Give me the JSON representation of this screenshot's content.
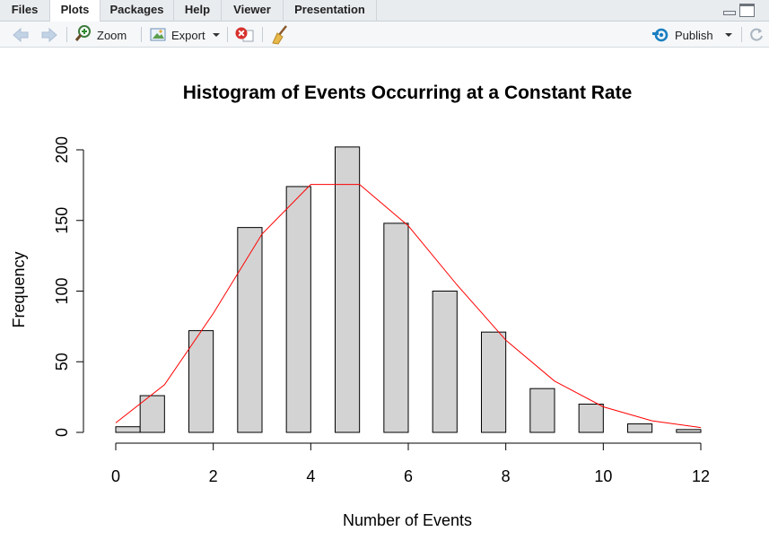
{
  "tabs": [
    {
      "label": "Files",
      "active": false
    },
    {
      "label": "Plots",
      "active": true
    },
    {
      "label": "Packages",
      "active": false
    },
    {
      "label": "Help",
      "active": false
    },
    {
      "label": "Viewer",
      "active": false
    },
    {
      "label": "Presentation",
      "active": false
    }
  ],
  "toolbar": {
    "back_icon": "arrow-left-icon",
    "forward_icon": "arrow-right-icon",
    "zoom_label": "Zoom",
    "export_label": "Export",
    "remove_icon": "remove-plot-icon",
    "clear_icon": "broom-icon",
    "publish_label": "Publish",
    "refresh_icon": "refresh-icon"
  },
  "colors": {
    "bar_fill": "#d3d3d3",
    "bar_stroke": "#000000",
    "curve": "#ff0000",
    "publish_accent": "#1a7fc1"
  },
  "chart_data": {
    "type": "bar",
    "title": "Histogram of Events Occurring at a Constant Rate",
    "xlabel": "Number of Events",
    "ylabel": "Frequency",
    "xlim": [
      0,
      12
    ],
    "ylim": [
      0,
      200
    ],
    "x_ticks": [
      "0",
      "2",
      "4",
      "6",
      "8",
      "10",
      "12"
    ],
    "y_ticks": [
      "0",
      "50",
      "100",
      "150",
      "200"
    ],
    "grid": false,
    "bar_width": 0.5,
    "bars": [
      {
        "x": 0.25,
        "value": 4
      },
      {
        "x": 0.75,
        "value": 26
      },
      {
        "x": 1.75,
        "value": 72
      },
      {
        "x": 2.75,
        "value": 145
      },
      {
        "x": 3.75,
        "value": 174
      },
      {
        "x": 4.75,
        "value": 202
      },
      {
        "x": 5.75,
        "value": 148
      },
      {
        "x": 6.75,
        "value": 100
      },
      {
        "x": 7.75,
        "value": 71
      },
      {
        "x": 8.75,
        "value": 31
      },
      {
        "x": 9.75,
        "value": 20
      },
      {
        "x": 10.75,
        "value": 6
      },
      {
        "x": 11.75,
        "value": 2
      }
    ],
    "curve": {
      "x": [
        0,
        1,
        2,
        3,
        4,
        5,
        6,
        7,
        8,
        9,
        10,
        11,
        12
      ],
      "y": [
        6.7,
        33.7,
        84.2,
        140.4,
        175.5,
        175.5,
        146.2,
        104.4,
        65.3,
        36.3,
        18.1,
        8.2,
        3.4
      ]
    }
  }
}
